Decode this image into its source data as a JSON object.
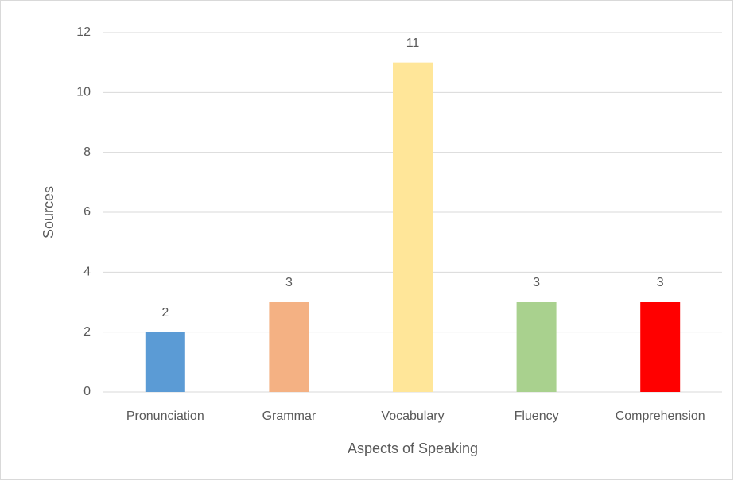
{
  "chart_data": {
    "type": "bar",
    "x_label": "Aspects of Speaking",
    "y_label": "Sources",
    "categories": [
      "Pronunciation",
      "Grammar",
      "Vocabulary",
      "Fluency",
      "Comprehension"
    ],
    "values": [
      2,
      3,
      11,
      3,
      3
    ],
    "colors": [
      "#5b9bd5",
      "#f4b183",
      "#ffe699",
      "#a9d18e",
      "#ff0000"
    ],
    "ylim": [
      0,
      12
    ],
    "yticks": [
      0,
      2,
      4,
      6,
      8,
      10,
      12
    ],
    "grid": true
  }
}
